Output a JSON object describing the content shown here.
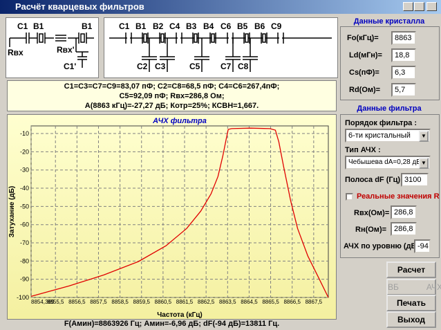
{
  "window": {
    "title": "Расчёт кварцевых фильтров"
  },
  "schematic_left": {
    "labels": [
      "C1",
      "B1",
      "B1",
      "Rвх",
      "Rвх'",
      "C1'"
    ]
  },
  "schematic_right": {
    "top_labels": [
      "C1",
      "B1",
      "B2",
      "C4",
      "B3",
      "B4",
      "C6",
      "B5",
      "B6",
      "C9"
    ],
    "bottom_labels": [
      "C2",
      "C3",
      "C5",
      "C7",
      "C8"
    ]
  },
  "results": {
    "lines": [
      "C1=C3=C7=C9=83,07 пФ; C2=C8=68,5 пФ; C4=C6=267,4пФ;",
      "C5=92,09 пФ; Rвх=286,8 Ом;",
      "A(8863 кГц)=-27,27 дБ; Котр=25%; КСВН=1,667."
    ]
  },
  "chart": {
    "type": "line",
    "title": "АЧХ фильтра",
    "x_label": "Частота (кГц)",
    "y_label": "Затухание (дБ)",
    "x": [
      8854.369,
      8856.14,
      8857.75,
      8859.35,
      8860.64,
      8861.6,
      8862.25,
      8862.73,
      8863.05,
      8863.28,
      8863.44,
      8863.53,
      8863.69,
      8864.56,
      8865.46,
      8865.72,
      8865.88,
      8866.1,
      8866.43,
      8866.75,
      8867.23,
      8867.71,
      8868.18
    ],
    "values": [
      -99.4,
      -93.65,
      -87.6,
      -80.3,
      -71.6,
      -62.1,
      -52.6,
      -43.1,
      -33.6,
      -22.2,
      -12.7,
      -7.7,
      -7.3,
      -7.0,
      -7.3,
      -8.1,
      -14.6,
      -27.9,
      -46.9,
      -62.1,
      -77.3,
      -88.7,
      -100
    ],
    "xlim": [
      8854.369,
      8868.18
    ],
    "ylim": [
      -100,
      -5.8
    ],
    "xticks": [
      {
        "value": 8854.369,
        "label": "8854,369"
      },
      {
        "value": 8855.5,
        "label": "8855,5"
      },
      {
        "value": 8856.5,
        "label": "8856,5"
      },
      {
        "value": 8857.5,
        "label": "8857,5"
      },
      {
        "value": 8858.5,
        "label": "8858,5"
      },
      {
        "value": 8859.5,
        "label": "8859,5"
      },
      {
        "value": 8860.5,
        "label": "8860,5"
      },
      {
        "value": 8861.5,
        "label": "8861,5"
      },
      {
        "value": 8862.5,
        "label": "8862,5"
      },
      {
        "value": 8863.5,
        "label": "8863,5"
      },
      {
        "value": 8864.5,
        "label": "8864,5"
      },
      {
        "value": 8865.5,
        "label": "8865,5"
      },
      {
        "value": 8866.5,
        "label": "8866,5"
      },
      {
        "value": 8867.5,
        "label": "8867,5"
      }
    ],
    "yticks": [
      -10,
      -20,
      -30,
      -40,
      -50,
      -60,
      -70,
      -80,
      -90,
      -100
    ],
    "color": "#e00000",
    "grid": true
  },
  "status": "F(Амин)=8863926 Гц; Амин=-6,96 дБ; dF(-94 дБ)=13811 Гц.",
  "crystal": {
    "title": "Данные кристалла",
    "fields": [
      {
        "label": "Fo(кГц)=",
        "value": "8863"
      },
      {
        "label": "Ld(мГн)=",
        "value": "18,8"
      },
      {
        "label": "Cs(пФ)=",
        "value": "6,3"
      },
      {
        "label": "Rd(Ом)=",
        "value": "5,7"
      }
    ]
  },
  "filter": {
    "title": "Данные фильтра",
    "order_label": "Порядок фильтра :",
    "order": "6-ти кристальный",
    "type_label": "Тип АЧХ :",
    "type": "Чебышева dA=0,28 дБ",
    "bandwidth_label": "Полоса dF (Гц) =",
    "bandwidth": "3100",
    "real_r_label": "Реальные значения R",
    "rin_label": "Rвх(Ом)=",
    "rin": "286,8",
    "rout_label": "Rн(Ом)=",
    "rout": "286,8",
    "level_label": "АЧХ по уровню (дБ) :",
    "level": "-94"
  },
  "buttons": {
    "calc": "Расчет",
    "vb": "ВБ",
    "ach": "АЧХ",
    "print": "Печать",
    "exit": "Выход"
  }
}
